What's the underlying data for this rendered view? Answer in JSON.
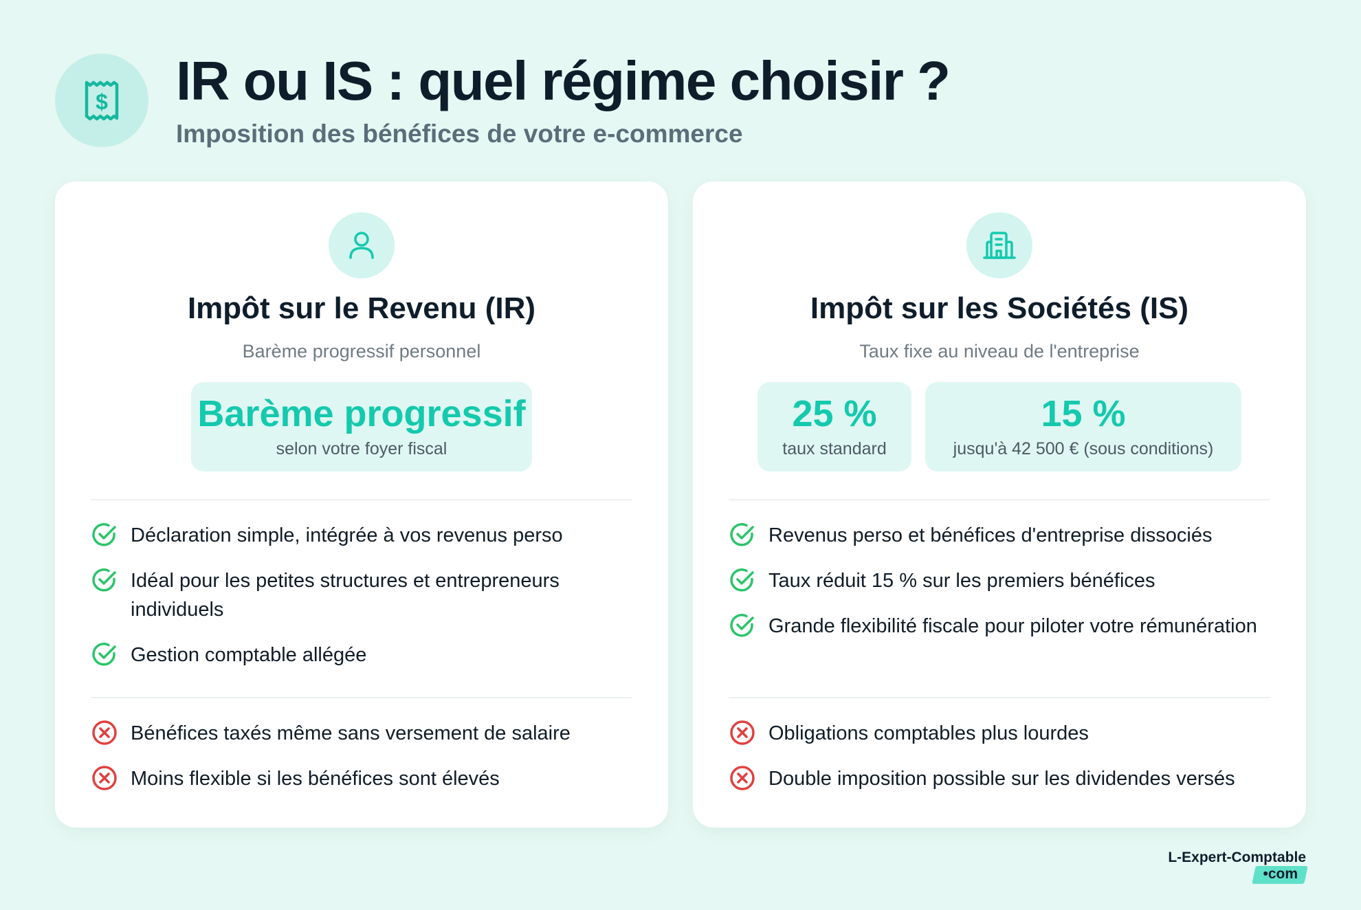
{
  "header": {
    "title": "IR ou IS : quel régime choisir ?",
    "subtitle": "Imposition des bénéfices de votre e-commerce",
    "icon": "receipt-dollar-icon"
  },
  "colors": {
    "background": "#e6f8f3",
    "accent": "#14c9ad",
    "positive": "#2bc46a",
    "negative": "#e04040",
    "title": "#0f1d2b"
  },
  "ir": {
    "icon": "user-icon",
    "title": "Impôt sur le Revenu (IR)",
    "subtitle": "Barème progressif personnel",
    "rates": [
      {
        "value": "Barème progressif",
        "label": "selon votre foyer fiscal"
      }
    ],
    "pros": [
      "Déclaration simple, intégrée à vos revenus perso",
      "Idéal pour les petites structures et entrepreneurs individuels",
      "Gestion comptable allégée"
    ],
    "cons": [
      "Bénéfices taxés même sans versement de salaire",
      "Moins flexible si les bénéfices sont élevés"
    ]
  },
  "is": {
    "icon": "building-icon",
    "title": "Impôt sur les Sociétés (IS)",
    "subtitle": "Taux fixe au niveau de l'entreprise",
    "rates": [
      {
        "value": "25 %",
        "label": "taux standard"
      },
      {
        "value": "15 %",
        "label": "jusqu'à 42 500 € (sous conditions)"
      }
    ],
    "pros": [
      "Revenus perso et bénéfices d'entreprise dissociés",
      "Taux réduit 15 % sur les premiers bénéfices",
      "Grande flexibilité fiscale pour piloter votre rémunération"
    ],
    "cons": [
      "Obligations comptables plus lourdes",
      "Double imposition possible sur les dividendes versés"
    ]
  },
  "footer": {
    "logo_main": "L-Expert-Comptable",
    "logo_suffix": "•com"
  }
}
